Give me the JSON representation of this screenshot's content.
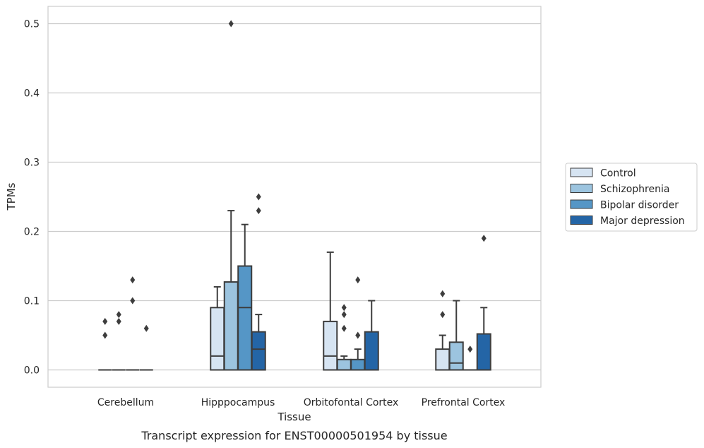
{
  "caption": "Transcript expression for ENST00000501954 by tissue",
  "chart_data": {
    "type": "box",
    "title": "",
    "xlabel": "Tissue",
    "ylabel": "TPMs",
    "ylim": [
      -0.025,
      0.525
    ],
    "yticks": [
      0.0,
      0.1,
      0.2,
      0.3,
      0.4,
      0.5
    ],
    "ytick_labels": [
      "0.0",
      "0.1",
      "0.2",
      "0.3",
      "0.4",
      "0.5"
    ],
    "grid": "horizontal",
    "legend_position": "right",
    "categories": [
      "Cerebellum",
      "Hipppocampus",
      "Orbitofontal Cortex",
      "Prefrontal Cortex"
    ],
    "series": [
      {
        "name": "Control",
        "color": "#d6e4f2",
        "boxes": [
          {
            "q1": 0.0,
            "median": 0.0,
            "q3": 0.0,
            "whisker_low": 0.0,
            "whisker_high": 0.0,
            "outliers": [
              0.07,
              0.05
            ]
          },
          {
            "q1": 0.0,
            "median": 0.02,
            "q3": 0.09,
            "whisker_low": 0.0,
            "whisker_high": 0.12,
            "outliers": []
          },
          {
            "q1": 0.0,
            "median": 0.02,
            "q3": 0.07,
            "whisker_low": 0.0,
            "whisker_high": 0.17,
            "outliers": []
          },
          {
            "q1": 0.0,
            "median": 0.0,
            "q3": 0.03,
            "whisker_low": 0.0,
            "whisker_high": 0.05,
            "outliers": [
              0.11,
              0.08
            ]
          }
        ]
      },
      {
        "name": "Schizophrenia",
        "color": "#9cc4df",
        "boxes": [
          {
            "q1": 0.0,
            "median": 0.0,
            "q3": 0.0,
            "whisker_low": 0.0,
            "whisker_high": 0.0,
            "outliers": [
              0.08,
              0.07
            ]
          },
          {
            "q1": 0.0,
            "median": 0.0,
            "q3": 0.127,
            "whisker_low": 0.0,
            "whisker_high": 0.23,
            "outliers": [
              0.5
            ]
          },
          {
            "q1": 0.0,
            "median": 0.0,
            "q3": 0.015,
            "whisker_low": 0.0,
            "whisker_high": 0.02,
            "outliers": [
              0.09,
              0.08,
              0.06
            ]
          },
          {
            "q1": 0.0,
            "median": 0.01,
            "q3": 0.04,
            "whisker_low": 0.0,
            "whisker_high": 0.1,
            "outliers": []
          }
        ]
      },
      {
        "name": "Bipolar disorder",
        "color": "#5596c6",
        "boxes": [
          {
            "q1": 0.0,
            "median": 0.0,
            "q3": 0.0,
            "whisker_low": 0.0,
            "whisker_high": 0.0,
            "outliers": [
              0.13,
              0.1
            ]
          },
          {
            "q1": 0.0,
            "median": 0.09,
            "q3": 0.15,
            "whisker_low": 0.0,
            "whisker_high": 0.21,
            "outliers": []
          },
          {
            "q1": 0.0,
            "median": 0.0,
            "q3": 0.015,
            "whisker_low": 0.0,
            "whisker_high": 0.03,
            "outliers": [
              0.13,
              0.05
            ]
          },
          {
            "q1": 0.0,
            "median": 0.0,
            "q3": 0.0,
            "whisker_low": 0.0,
            "whisker_high": 0.0,
            "outliers": [
              0.03
            ]
          }
        ]
      },
      {
        "name": "Major depression",
        "color": "#2465a6",
        "boxes": [
          {
            "q1": 0.0,
            "median": 0.0,
            "q3": 0.0,
            "whisker_low": 0.0,
            "whisker_high": 0.0,
            "outliers": [
              0.06
            ]
          },
          {
            "q1": 0.0,
            "median": 0.03,
            "q3": 0.055,
            "whisker_low": 0.0,
            "whisker_high": 0.08,
            "outliers": [
              0.25,
              0.23
            ]
          },
          {
            "q1": 0.0,
            "median": 0.0,
            "q3": 0.055,
            "whisker_low": 0.0,
            "whisker_high": 0.1,
            "outliers": []
          },
          {
            "q1": 0.0,
            "median": 0.0,
            "q3": 0.052,
            "whisker_low": 0.0,
            "whisker_high": 0.09,
            "outliers": [
              0.19
            ]
          }
        ]
      }
    ]
  }
}
